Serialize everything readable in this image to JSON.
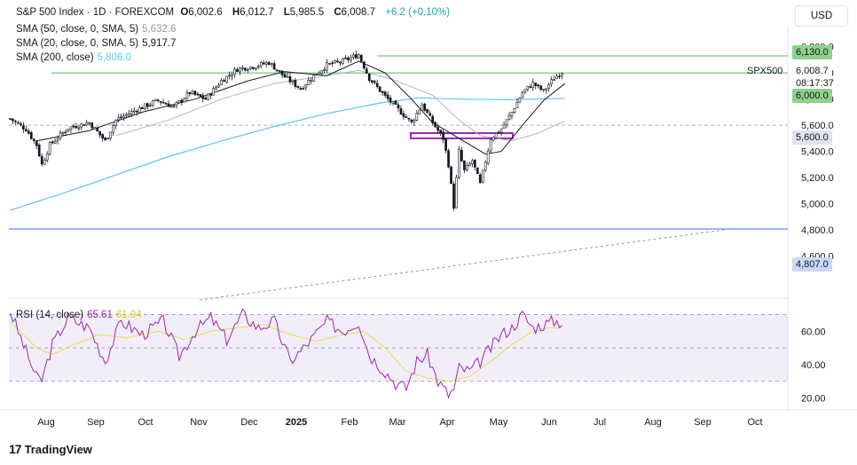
{
  "header": {
    "symbol": "S&P 500 Index · 1D · FOREXCOM",
    "open_label": "O",
    "open": "6,002.6",
    "high_label": "H",
    "high": "6,012.7",
    "low_label": "L",
    "low": "5,985.5",
    "close_label": "C",
    "close": "6,008.7",
    "change": "+6.2 (+0.10%)",
    "sma50_label": "SMA (50, close, 0, SMA, 5)",
    "sma50_value": "5,632.6",
    "sma20_label": "SMA (20, close, 0, SMA, 5)",
    "sma20_value": "5,917.7",
    "sma200_label": "SMA (200, close)",
    "sma200_value": "5,806.0",
    "rsi_label": "RSI (14, close)",
    "rsi_value": "65.61",
    "rsi_ma_value": "61.94"
  },
  "currency_button": "USD",
  "logo_text": "TradingView",
  "price_tags": {
    "level_6130": "6,130.0",
    "last_price": "6,008.7",
    "countdown": "08:17:37",
    "level_6000": "6,000.0",
    "level_5600": "5,600.0",
    "level_4807": "4,807.0"
  },
  "symbol_label": "SPX500",
  "colors": {
    "up": "#26a69a",
    "candle": "#131722",
    "sma20": "#131722",
    "sma50": "#b2b5be",
    "sma200": "#5ec8e0",
    "support_green": "#8fd18c",
    "support_blue": "#2962ff",
    "rsi": "#9c27b0",
    "rsi_ma": "#e8e04a",
    "box": "#9c27b0"
  },
  "chart_data": {
    "type": "candlestick",
    "title": "S&P 500 Index · 1D · FOREXCOM",
    "price_axis": {
      "min": 4400,
      "max": 6300,
      "ticks": [
        6200,
        6000,
        5800,
        5600,
        5400,
        5200,
        5000,
        4800,
        4600
      ],
      "tick_labels": [
        "6,200.0",
        "6,000.0",
        "5,800.0",
        "5,600.0",
        "5,400.0",
        "5,200.0",
        "5,000.0",
        "4,800.0",
        "4,600.0"
      ]
    },
    "rsi_axis": {
      "min": 15,
      "max": 75,
      "ticks": [
        60,
        40,
        20
      ],
      "tick_labels": [
        "60.00",
        "40.00",
        "20.00"
      ],
      "bands": [
        30,
        50,
        70
      ]
    },
    "time_axis": [
      "Aug",
      "Sep",
      "Oct",
      "Nov",
      "Dec",
      "2025",
      "Feb",
      "Mar",
      "Apr",
      "May",
      "Jun",
      "Jul",
      "Aug",
      "Sep",
      "Oct"
    ],
    "horizontal_levels": [
      {
        "label": "6,130.0",
        "value": 6130,
        "color": "green"
      },
      {
        "label": "6,000.0",
        "value": 6000,
        "color": "green"
      },
      {
        "label": "5,600.0",
        "value": 5600,
        "color": "dashed"
      },
      {
        "label": "4,807.0",
        "value": 4807,
        "color": "blue"
      }
    ],
    "anchors": [
      {
        "bar": 0,
        "close": 5650
      },
      {
        "bar": 6,
        "close": 5570
      },
      {
        "bar": 10,
        "close": 5450
      },
      {
        "bar": 12,
        "close": 5300
      },
      {
        "bar": 15,
        "close": 5450
      },
      {
        "bar": 22,
        "close": 5580
      },
      {
        "bar": 30,
        "close": 5620
      },
      {
        "bar": 36,
        "close": 5480
      },
      {
        "bar": 40,
        "close": 5640
      },
      {
        "bar": 48,
        "close": 5720
      },
      {
        "bar": 56,
        "close": 5790
      },
      {
        "bar": 62,
        "close": 5740
      },
      {
        "bar": 68,
        "close": 5850
      },
      {
        "bar": 74,
        "close": 5800
      },
      {
        "bar": 80,
        "close": 5940
      },
      {
        "bar": 86,
        "close": 6030
      },
      {
        "bar": 92,
        "close": 6050
      },
      {
        "bar": 98,
        "close": 6080
      },
      {
        "bar": 104,
        "close": 5970
      },
      {
        "bar": 110,
        "close": 5880
      },
      {
        "bar": 114,
        "close": 5960
      },
      {
        "bar": 120,
        "close": 6060
      },
      {
        "bar": 126,
        "close": 6090
      },
      {
        "bar": 132,
        "close": 6140
      },
      {
        "bar": 136,
        "close": 5960
      },
      {
        "bar": 142,
        "close": 5820
      },
      {
        "bar": 148,
        "close": 5700
      },
      {
        "bar": 152,
        "close": 5620
      },
      {
        "bar": 156,
        "close": 5760
      },
      {
        "bar": 160,
        "close": 5620
      },
      {
        "bar": 164,
        "close": 5500
      },
      {
        "bar": 166,
        "close": 5300
      },
      {
        "bar": 168,
        "close": 4980
      },
      {
        "bar": 170,
        "close": 5400
      },
      {
        "bar": 172,
        "close": 5250
      },
      {
        "bar": 175,
        "close": 5330
      },
      {
        "bar": 178,
        "close": 5150
      },
      {
        "bar": 182,
        "close": 5500
      },
      {
        "bar": 186,
        "close": 5570
      },
      {
        "bar": 190,
        "close": 5700
      },
      {
        "bar": 194,
        "close": 5850
      },
      {
        "bar": 198,
        "close": 5920
      },
      {
        "bar": 202,
        "close": 5860
      },
      {
        "bar": 206,
        "close": 5960
      },
      {
        "bar": 209,
        "close": 6009
      }
    ],
    "sma20": [
      [
        10,
        5480
      ],
      [
        30,
        5560
      ],
      [
        50,
        5700
      ],
      [
        70,
        5800
      ],
      [
        90,
        5940
      ],
      [
        104,
        6010
      ],
      [
        120,
        5980
      ],
      [
        132,
        6090
      ],
      [
        142,
        6000
      ],
      [
        152,
        5800
      ],
      [
        160,
        5620
      ],
      [
        170,
        5500
      ],
      [
        180,
        5380
      ],
      [
        186,
        5400
      ],
      [
        194,
        5600
      ],
      [
        202,
        5790
      ],
      [
        210,
        5918
      ]
    ],
    "sma50": [
      [
        40,
        5520
      ],
      [
        60,
        5640
      ],
      [
        80,
        5800
      ],
      [
        100,
        5920
      ],
      [
        120,
        5980
      ],
      [
        132,
        6020
      ],
      [
        145,
        5950
      ],
      [
        160,
        5830
      ],
      [
        170,
        5640
      ],
      [
        178,
        5520
      ],
      [
        190,
        5480
      ],
      [
        200,
        5540
      ],
      [
        210,
        5633
      ]
    ],
    "sma200": [
      [
        0,
        4950
      ],
      [
        20,
        5080
      ],
      [
        40,
        5220
      ],
      [
        60,
        5360
      ],
      [
        80,
        5480
      ],
      [
        100,
        5590
      ],
      [
        120,
        5690
      ],
      [
        140,
        5770
      ],
      [
        155,
        5810
      ],
      [
        170,
        5800
      ],
      [
        190,
        5795
      ],
      [
        210,
        5806
      ]
    ],
    "rsi": [
      [
        0,
        72
      ],
      [
        6,
        48
      ],
      [
        10,
        32
      ],
      [
        12,
        31
      ],
      [
        16,
        52
      ],
      [
        22,
        68
      ],
      [
        30,
        62
      ],
      [
        36,
        42
      ],
      [
        42,
        66
      ],
      [
        50,
        58
      ],
      [
        58,
        66
      ],
      [
        64,
        45
      ],
      [
        70,
        60
      ],
      [
        76,
        68
      ],
      [
        82,
        55
      ],
      [
        88,
        70
      ],
      [
        94,
        62
      ],
      [
        100,
        66
      ],
      [
        106,
        42
      ],
      [
        110,
        48
      ],
      [
        114,
        55
      ],
      [
        120,
        66
      ],
      [
        126,
        60
      ],
      [
        132,
        66
      ],
      [
        136,
        46
      ],
      [
        142,
        36
      ],
      [
        146,
        29
      ],
      [
        150,
        26
      ],
      [
        154,
        42
      ],
      [
        158,
        46
      ],
      [
        162,
        30
      ],
      [
        166,
        22
      ],
      [
        168,
        25
      ],
      [
        170,
        38
      ],
      [
        174,
        36
      ],
      [
        178,
        42
      ],
      [
        182,
        50
      ],
      [
        186,
        58
      ],
      [
        190,
        62
      ],
      [
        194,
        70
      ],
      [
        198,
        62
      ],
      [
        202,
        64
      ],
      [
        206,
        66
      ],
      [
        209,
        65.61
      ]
    ],
    "rsi_ma": [
      [
        0,
        66
      ],
      [
        10,
        50
      ],
      [
        16,
        46
      ],
      [
        24,
        52
      ],
      [
        34,
        58
      ],
      [
        44,
        56
      ],
      [
        56,
        60
      ],
      [
        66,
        55
      ],
      [
        76,
        60
      ],
      [
        86,
        62
      ],
      [
        96,
        64
      ],
      [
        106,
        58
      ],
      [
        116,
        54
      ],
      [
        126,
        58
      ],
      [
        134,
        60
      ],
      [
        142,
        50
      ],
      [
        150,
        36
      ],
      [
        158,
        32
      ],
      [
        166,
        30
      ],
      [
        174,
        33
      ],
      [
        182,
        42
      ],
      [
        190,
        52
      ],
      [
        198,
        60
      ],
      [
        204,
        62
      ],
      [
        209,
        61.94
      ]
    ]
  }
}
